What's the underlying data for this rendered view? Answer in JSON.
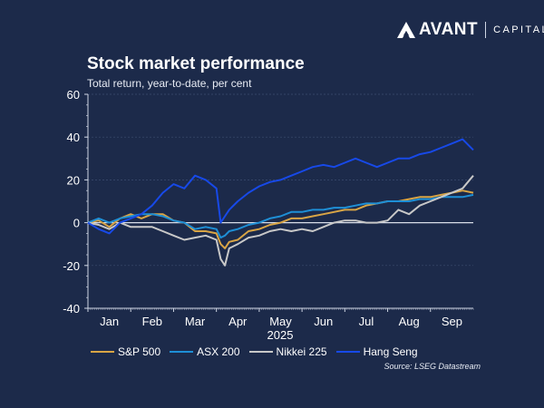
{
  "logo": {
    "brand": "AVANT",
    "suffix": "CAPITAL"
  },
  "source": "Source: LSEG Datastream",
  "colors": {
    "background": "#1c2a4a",
    "sp500": "#d9a545",
    "asx200": "#1e8fd6",
    "nikkei": "#c8c8c8",
    "hangseng": "#1749e8"
  },
  "chart_data": {
    "type": "line",
    "title": "Stock market performance",
    "subtitle": "Total return, year-to-date, per cent",
    "xlabel": "2025",
    "ylabel": "",
    "ylim": [
      -40,
      60
    ],
    "yticks": [
      "60",
      "40",
      "20",
      "0",
      "-20",
      "-40"
    ],
    "yticks_values": [
      60,
      40,
      20,
      0,
      -20,
      -40
    ],
    "xticks": [
      "Jan",
      "Feb",
      "Mar",
      "Apr",
      "May",
      "Jun",
      "Jul",
      "Aug",
      "Sep"
    ],
    "grid": true,
    "legend_position": "bottom",
    "x": [
      0,
      0.25,
      0.5,
      0.75,
      1.0,
      1.25,
      1.5,
      1.75,
      2.0,
      2.25,
      2.5,
      2.75,
      3.0,
      3.1,
      3.2,
      3.3,
      3.5,
      3.75,
      4.0,
      4.25,
      4.5,
      4.75,
      5.0,
      5.25,
      5.5,
      5.75,
      6.0,
      6.25,
      6.5,
      6.75,
      7.0,
      7.25,
      7.5,
      7.75,
      8.0,
      8.25,
      8.5,
      8.75,
      9.0
    ],
    "series": [
      {
        "name": "S&P 500",
        "key": "sp500",
        "values": [
          0,
          1,
          -2,
          2,
          4,
          2,
          4,
          4,
          1,
          0,
          -4,
          -4,
          -5,
          -10,
          -12,
          -9,
          -8,
          -4,
          -3,
          -1,
          0,
          2,
          2,
          3,
          4,
          5,
          6,
          6,
          8,
          9,
          10,
          10,
          11,
          12,
          12,
          13,
          14,
          15,
          14
        ]
      },
      {
        "name": "ASX 200",
        "key": "asx200",
        "values": [
          0,
          2,
          0,
          2,
          3,
          4,
          4,
          3,
          1,
          0,
          -3,
          -2,
          -3,
          -7,
          -6,
          -4,
          -3,
          -1,
          0,
          2,
          3,
          5,
          5,
          6,
          6,
          7,
          7,
          8,
          9,
          9,
          10,
          10,
          10,
          11,
          11,
          12,
          12,
          12,
          13
        ]
      },
      {
        "name": "Nikkei 225",
        "key": "nikkei",
        "values": [
          0,
          -1,
          -3,
          0,
          -2,
          -2,
          -2,
          -4,
          -6,
          -8,
          -7,
          -6,
          -8,
          -17,
          -20,
          -12,
          -10,
          -7,
          -6,
          -4,
          -3,
          -4,
          -3,
          -4,
          -2,
          0,
          1,
          1,
          0,
          0,
          1,
          6,
          4,
          8,
          10,
          12,
          14,
          16,
          22
        ]
      },
      {
        "name": "Hang Seng",
        "key": "hangseng",
        "values": [
          0,
          -3,
          -5,
          0,
          2,
          4,
          8,
          14,
          18,
          16,
          22,
          20,
          16,
          0,
          3,
          6,
          10,
          14,
          17,
          19,
          20,
          22,
          24,
          26,
          27,
          26,
          28,
          30,
          28,
          26,
          28,
          30,
          30,
          32,
          33,
          35,
          37,
          39,
          34
        ]
      }
    ]
  }
}
